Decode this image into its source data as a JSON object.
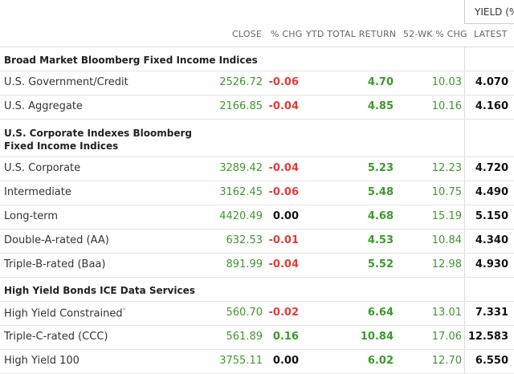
{
  "yield_header": "YIELD (%)",
  "columns": {
    "close": "CLOSE",
    "pct_chg": "% CHG",
    "ytd": "YTD TOTAL RETURN",
    "wk52": "52-WK % CHG",
    "latest": "LATEST"
  },
  "sections": [
    {
      "title": "Broad Market Bloomberg Fixed Income Indices",
      "rows": [
        {
          "name": "U.S. Government/Credit",
          "close": "2526.72",
          "chg": "-0.06",
          "ytd": "4.70",
          "wk52": "10.03",
          "latest": "4.070"
        },
        {
          "name": "U.S. Aggregate",
          "close": "2166.85",
          "chg": "-0.04",
          "ytd": "4.85",
          "wk52": "10.16",
          "latest": "4.160"
        }
      ]
    },
    {
      "title": "U.S. Corporate Indexes Bloomberg Fixed Income Indices",
      "rows": [
        {
          "name": "U.S. Corporate",
          "close": "3289.42",
          "chg": "-0.04",
          "ytd": "5.23",
          "wk52": "12.23",
          "latest": "4.720"
        },
        {
          "name": "Intermediate",
          "close": "3162.45",
          "chg": "-0.06",
          "ytd": "5.48",
          "wk52": "10.75",
          "latest": "4.490"
        },
        {
          "name": "Long-term",
          "close": "4420.49",
          "chg": "0.00",
          "ytd": "4.68",
          "wk52": "15.19",
          "latest": "5.150"
        },
        {
          "name": "Double-A-rated (AA)",
          "close": "632.53",
          "chg": "-0.01",
          "ytd": "4.53",
          "wk52": "10.84",
          "latest": "4.340"
        },
        {
          "name": "Triple-B-rated (Baa)",
          "close": "891.99",
          "chg": "-0.04",
          "ytd": "5.52",
          "wk52": "12.98",
          "latest": "4.930"
        }
      ]
    },
    {
      "title": "High Yield Bonds ICE Data Services",
      "rows": [
        {
          "name": "High Yield Constrained",
          "sup": "*",
          "close": "560.70",
          "chg": "-0.02",
          "ytd": "6.64",
          "wk52": "13.01",
          "latest": "7.331"
        },
        {
          "name": "Triple-C-rated (CCC)",
          "close": "561.89",
          "chg": "0.16",
          "ytd": "10.84",
          "wk52": "17.06",
          "latest": "12.583"
        },
        {
          "name": "High Yield 100",
          "close": "3755.11",
          "chg": "0.00",
          "ytd": "6.02",
          "wk52": "12.70",
          "latest": "6.550"
        }
      ]
    }
  ],
  "colors": {
    "positive": "#3b9a2a",
    "negative": "#e23b3b",
    "neutral": "#111111"
  }
}
